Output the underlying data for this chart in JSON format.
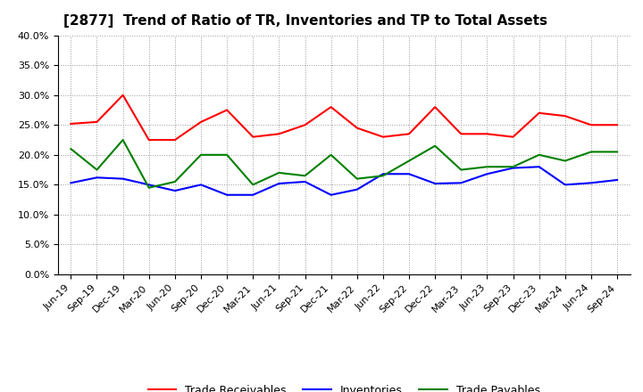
{
  "title": "[2877]  Trend of Ratio of TR, Inventories and TP to Total Assets",
  "x_labels": [
    "Jun-19",
    "Sep-19",
    "Dec-19",
    "Mar-20",
    "Jun-20",
    "Sep-20",
    "Dec-20",
    "Mar-21",
    "Jun-21",
    "Sep-21",
    "Dec-21",
    "Mar-22",
    "Jun-22",
    "Sep-22",
    "Dec-22",
    "Mar-23",
    "Jun-23",
    "Sep-23",
    "Dec-23",
    "Mar-24",
    "Jun-24",
    "Sep-24"
  ],
  "trade_receivables": [
    25.2,
    25.5,
    30.0,
    22.5,
    22.5,
    25.5,
    27.5,
    23.0,
    23.5,
    25.0,
    28.0,
    24.5,
    23.0,
    23.5,
    28.0,
    23.5,
    23.5,
    23.0,
    27.0,
    26.5,
    25.0,
    25.0
  ],
  "inventories": [
    15.3,
    16.2,
    16.0,
    15.0,
    14.0,
    15.0,
    13.3,
    13.3,
    15.2,
    15.5,
    13.3,
    14.2,
    16.8,
    16.8,
    15.2,
    15.3,
    16.8,
    17.8,
    18.0,
    15.0,
    15.3,
    15.8
  ],
  "trade_payables": [
    21.0,
    17.5,
    22.5,
    14.5,
    15.5,
    20.0,
    20.0,
    15.0,
    17.0,
    16.5,
    20.0,
    16.0,
    16.5,
    19.0,
    21.5,
    17.5,
    18.0,
    18.0,
    20.0,
    19.0,
    20.5,
    20.5
  ],
  "ylim": [
    0,
    40
  ],
  "yticks": [
    0,
    5,
    10,
    15,
    20,
    25,
    30,
    35,
    40
  ],
  "line_color_tr": "#FF0000",
  "line_color_inv": "#0000FF",
  "line_color_tp": "#008000",
  "bg_color": "#FFFFFF",
  "plot_bg_color": "#FFFFFF",
  "grid_color": "#999999",
  "legend_labels": [
    "Trade Receivables",
    "Inventories",
    "Trade Payables"
  ],
  "title_fontsize": 11,
  "tick_fontsize": 8,
  "legend_fontsize": 9
}
